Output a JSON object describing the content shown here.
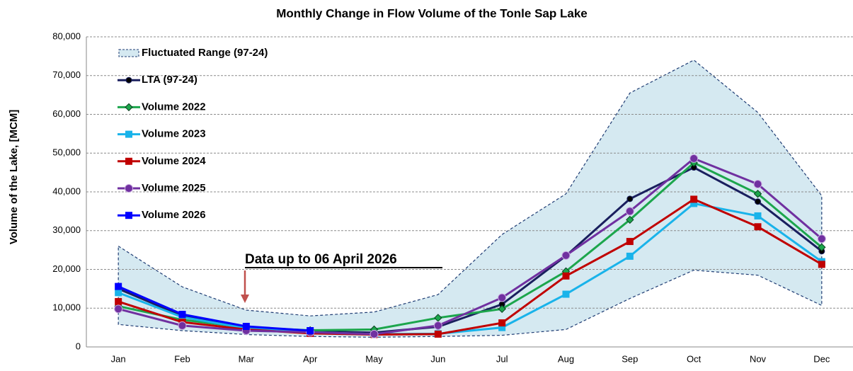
{
  "chart_data": {
    "type": "line",
    "title": "Monthly Change in Flow Volume of the Tonle Sap Lake",
    "y_label": "Volume of the Lake, [MCM]",
    "annotation": "Data up to 06 April 2026",
    "categories": [
      "Jan",
      "Feb",
      "Mar",
      "Apr",
      "May",
      "Jun",
      "Jul",
      "Aug",
      "Sep",
      "Oct",
      "Nov",
      "Dec"
    ],
    "ylim": [
      0,
      80000
    ],
    "yticks": [
      0,
      {
        "value": 10000,
        "label": "10,000"
      },
      {
        "value": 20000,
        "label": "20,000"
      },
      {
        "value": 30000,
        "label": "30,000"
      },
      {
        "value": 40000,
        "label": "40,000"
      },
      {
        "value": 50000,
        "label": "50,000"
      },
      {
        "value": 60000,
        "label": "60,000"
      },
      {
        "value": 70000,
        "label": "70,000"
      },
      {
        "value": 80000,
        "label": "80,000"
      }
    ],
    "grid": true,
    "range": {
      "name": "Fluctuated Range (97-24)",
      "color": "#d5e9f1",
      "border": "#1f3c73",
      "upper": [
        26000,
        15500,
        9500,
        8000,
        9000,
        13500,
        29000,
        39500,
        65500,
        74000,
        60500,
        39000
      ],
      "lower": [
        5800,
        4200,
        3200,
        2700,
        2500,
        2700,
        3000,
        4500,
        12500,
        19800,
        18500,
        10700
      ]
    },
    "series": [
      {
        "name": "LTA (97-24)",
        "color": "#1a1f5e",
        "marker": "dot",
        "values": [
          15000,
          8000,
          5000,
          4000,
          3700,
          5200,
          11000,
          23500,
          38200,
          46300,
          37500,
          24700
        ]
      },
      {
        "name": "Volume 2022",
        "color": "#1ca64c",
        "marker": "diamond",
        "values": [
          10500,
          7000,
          5000,
          4300,
          4500,
          7500,
          9800,
          19500,
          32800,
          47500,
          39500,
          25700
        ]
      },
      {
        "name": "Volume 2023",
        "color": "#19b3ea",
        "marker": "square",
        "values": [
          14000,
          7700,
          4800,
          3800,
          3300,
          3400,
          5000,
          13600,
          23400,
          37000,
          33800,
          22000
        ]
      },
      {
        "name": "Volume 2024",
        "color": "#c00000",
        "marker": "square",
        "values": [
          11700,
          6400,
          4500,
          3500,
          3200,
          3300,
          6200,
          18300,
          27200,
          38100,
          31000,
          21300
        ]
      },
      {
        "name": "Volume 2025",
        "color": "#7030a0",
        "marker": "circle",
        "values": [
          9800,
          5500,
          4200,
          3800,
          3300,
          5500,
          12700,
          23600,
          35000,
          48600,
          42000,
          27900
        ]
      },
      {
        "name": "Volume 2026",
        "color": "#0000ff",
        "marker": "square",
        "values": [
          15600,
          8400,
          5300,
          4200,
          null,
          null,
          null,
          null,
          null,
          null,
          null,
          null
        ]
      }
    ]
  }
}
